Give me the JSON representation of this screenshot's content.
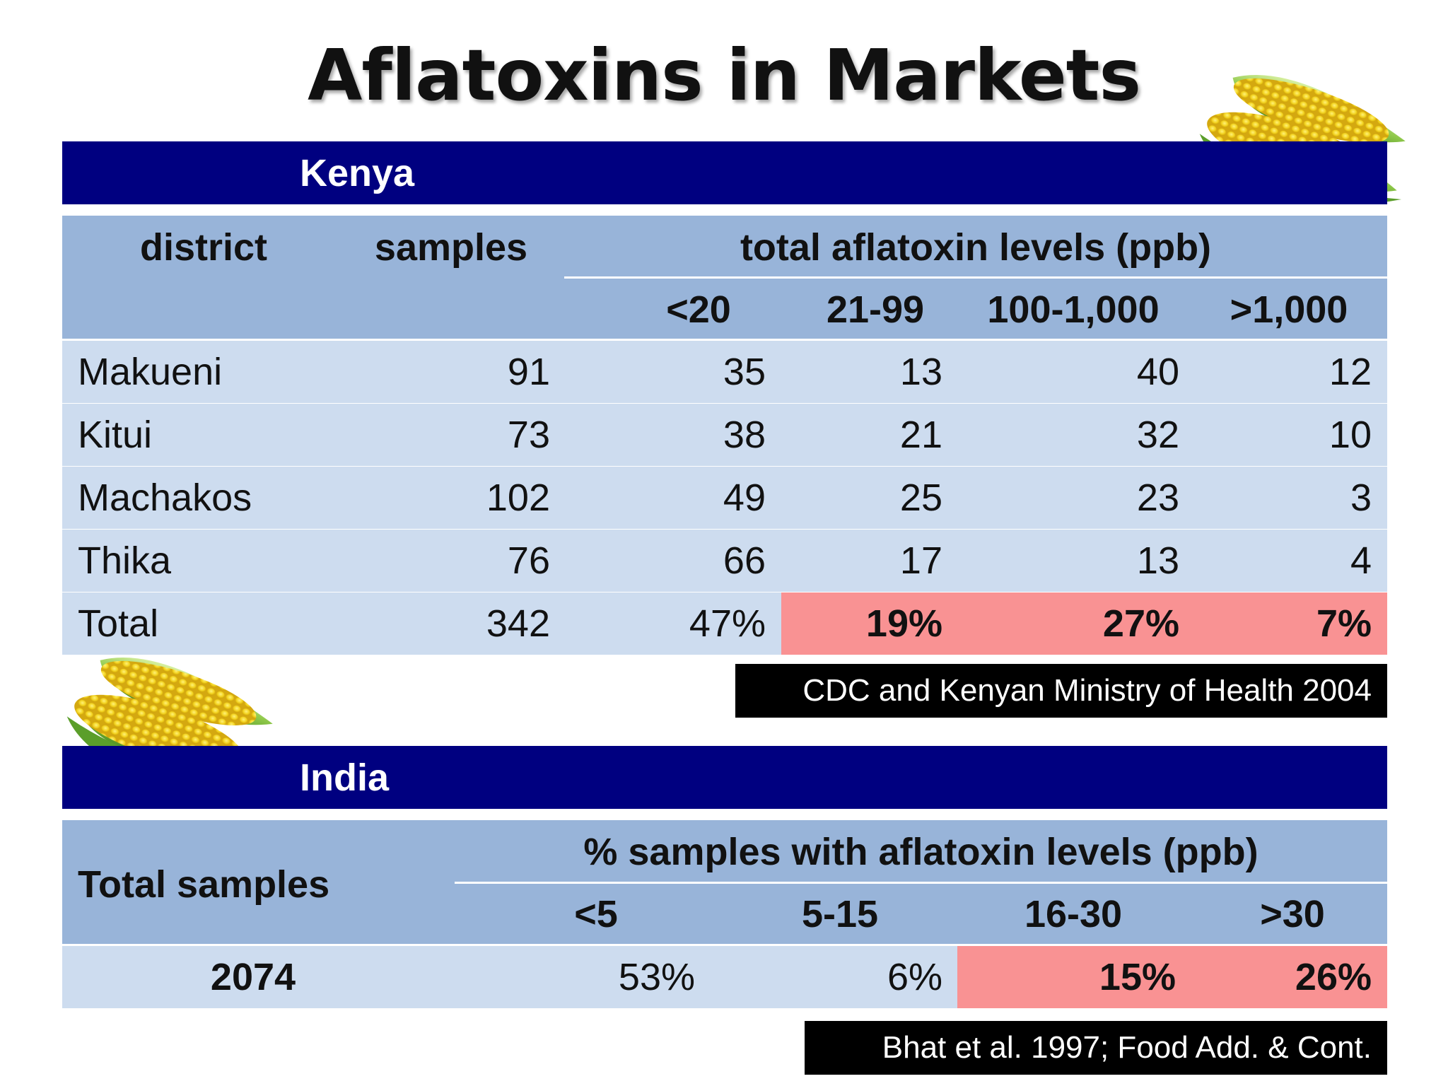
{
  "title": "Aflatoxins in Markets",
  "kenya": {
    "label": "Kenya",
    "headers": {
      "district": "district",
      "samples": "samples",
      "group": "total aflatoxin levels (ppb)",
      "bins": [
        "<20",
        "21-99",
        "100-1,000",
        ">1,000"
      ]
    },
    "rows": [
      {
        "district": "Makueni",
        "samples": "91",
        "v": [
          "35",
          "13",
          "40",
          "12"
        ]
      },
      {
        "district": "Kitui",
        "samples": "73",
        "v": [
          "38",
          "21",
          "32",
          "10"
        ]
      },
      {
        "district": "Machakos",
        "samples": "102",
        "v": [
          "49",
          "25",
          "23",
          "3"
        ]
      },
      {
        "district": "Thika",
        "samples": "76",
        "v": [
          "66",
          "17",
          "13",
          "4"
        ]
      }
    ],
    "total": {
      "label": "Total",
      "samples": "342",
      "v": [
        "47%",
        "19%",
        "27%",
        "7%"
      ]
    },
    "source": "CDC and Kenyan Ministry of Health  2004"
  },
  "india": {
    "label": "India",
    "headers": {
      "total": "Total samples",
      "group": "% samples with aflatoxin levels (ppb)",
      "bins": [
        "<5",
        "5-15",
        "16-30",
        ">30"
      ]
    },
    "row": {
      "total": "2074",
      "v": [
        "53%",
        "6%",
        "15%",
        "26%"
      ]
    },
    "source": "Bhat et al. 1997; Food Add. & Cont."
  },
  "colors": {
    "band": "#000080",
    "header": "#98b4d9",
    "row": "#cddcef",
    "highlight": "#f99293",
    "source_bg": "#000000"
  }
}
